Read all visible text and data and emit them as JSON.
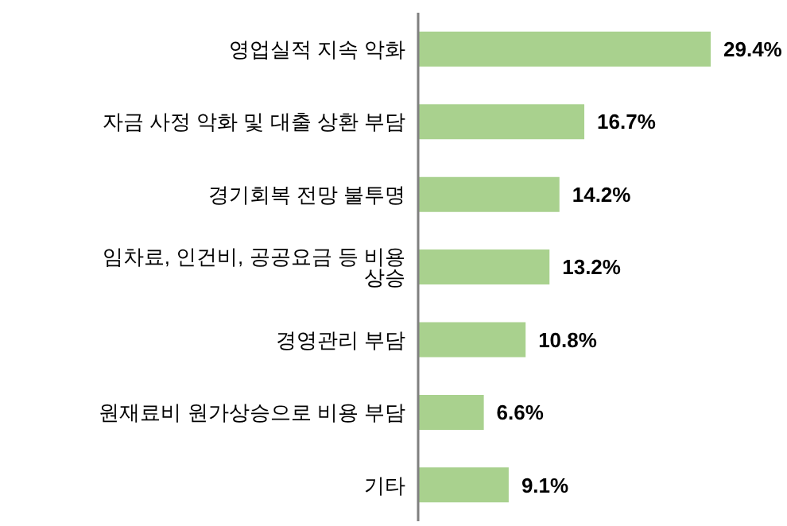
{
  "chart_data": {
    "type": "bar",
    "orientation": "horizontal",
    "categories": [
      "영업실적 지속 악화",
      "자금 사정 악화 및 대출 상환 부담",
      "경기회복 전망 불투명",
      "임차료, 인건비, 공공요금 등 비용 상승",
      "경영관리 부담",
      "원재료비 원가상승으로 비용 부담",
      "기타"
    ],
    "values": [
      29.4,
      16.7,
      14.2,
      13.2,
      10.8,
      6.6,
      9.1
    ],
    "value_labels": [
      "29.4%",
      "16.7%",
      "14.2%",
      "13.2%",
      "10.8%",
      "6.6%",
      "9.1%"
    ],
    "color": "#a9d18e",
    "grid": false,
    "legend": false
  }
}
